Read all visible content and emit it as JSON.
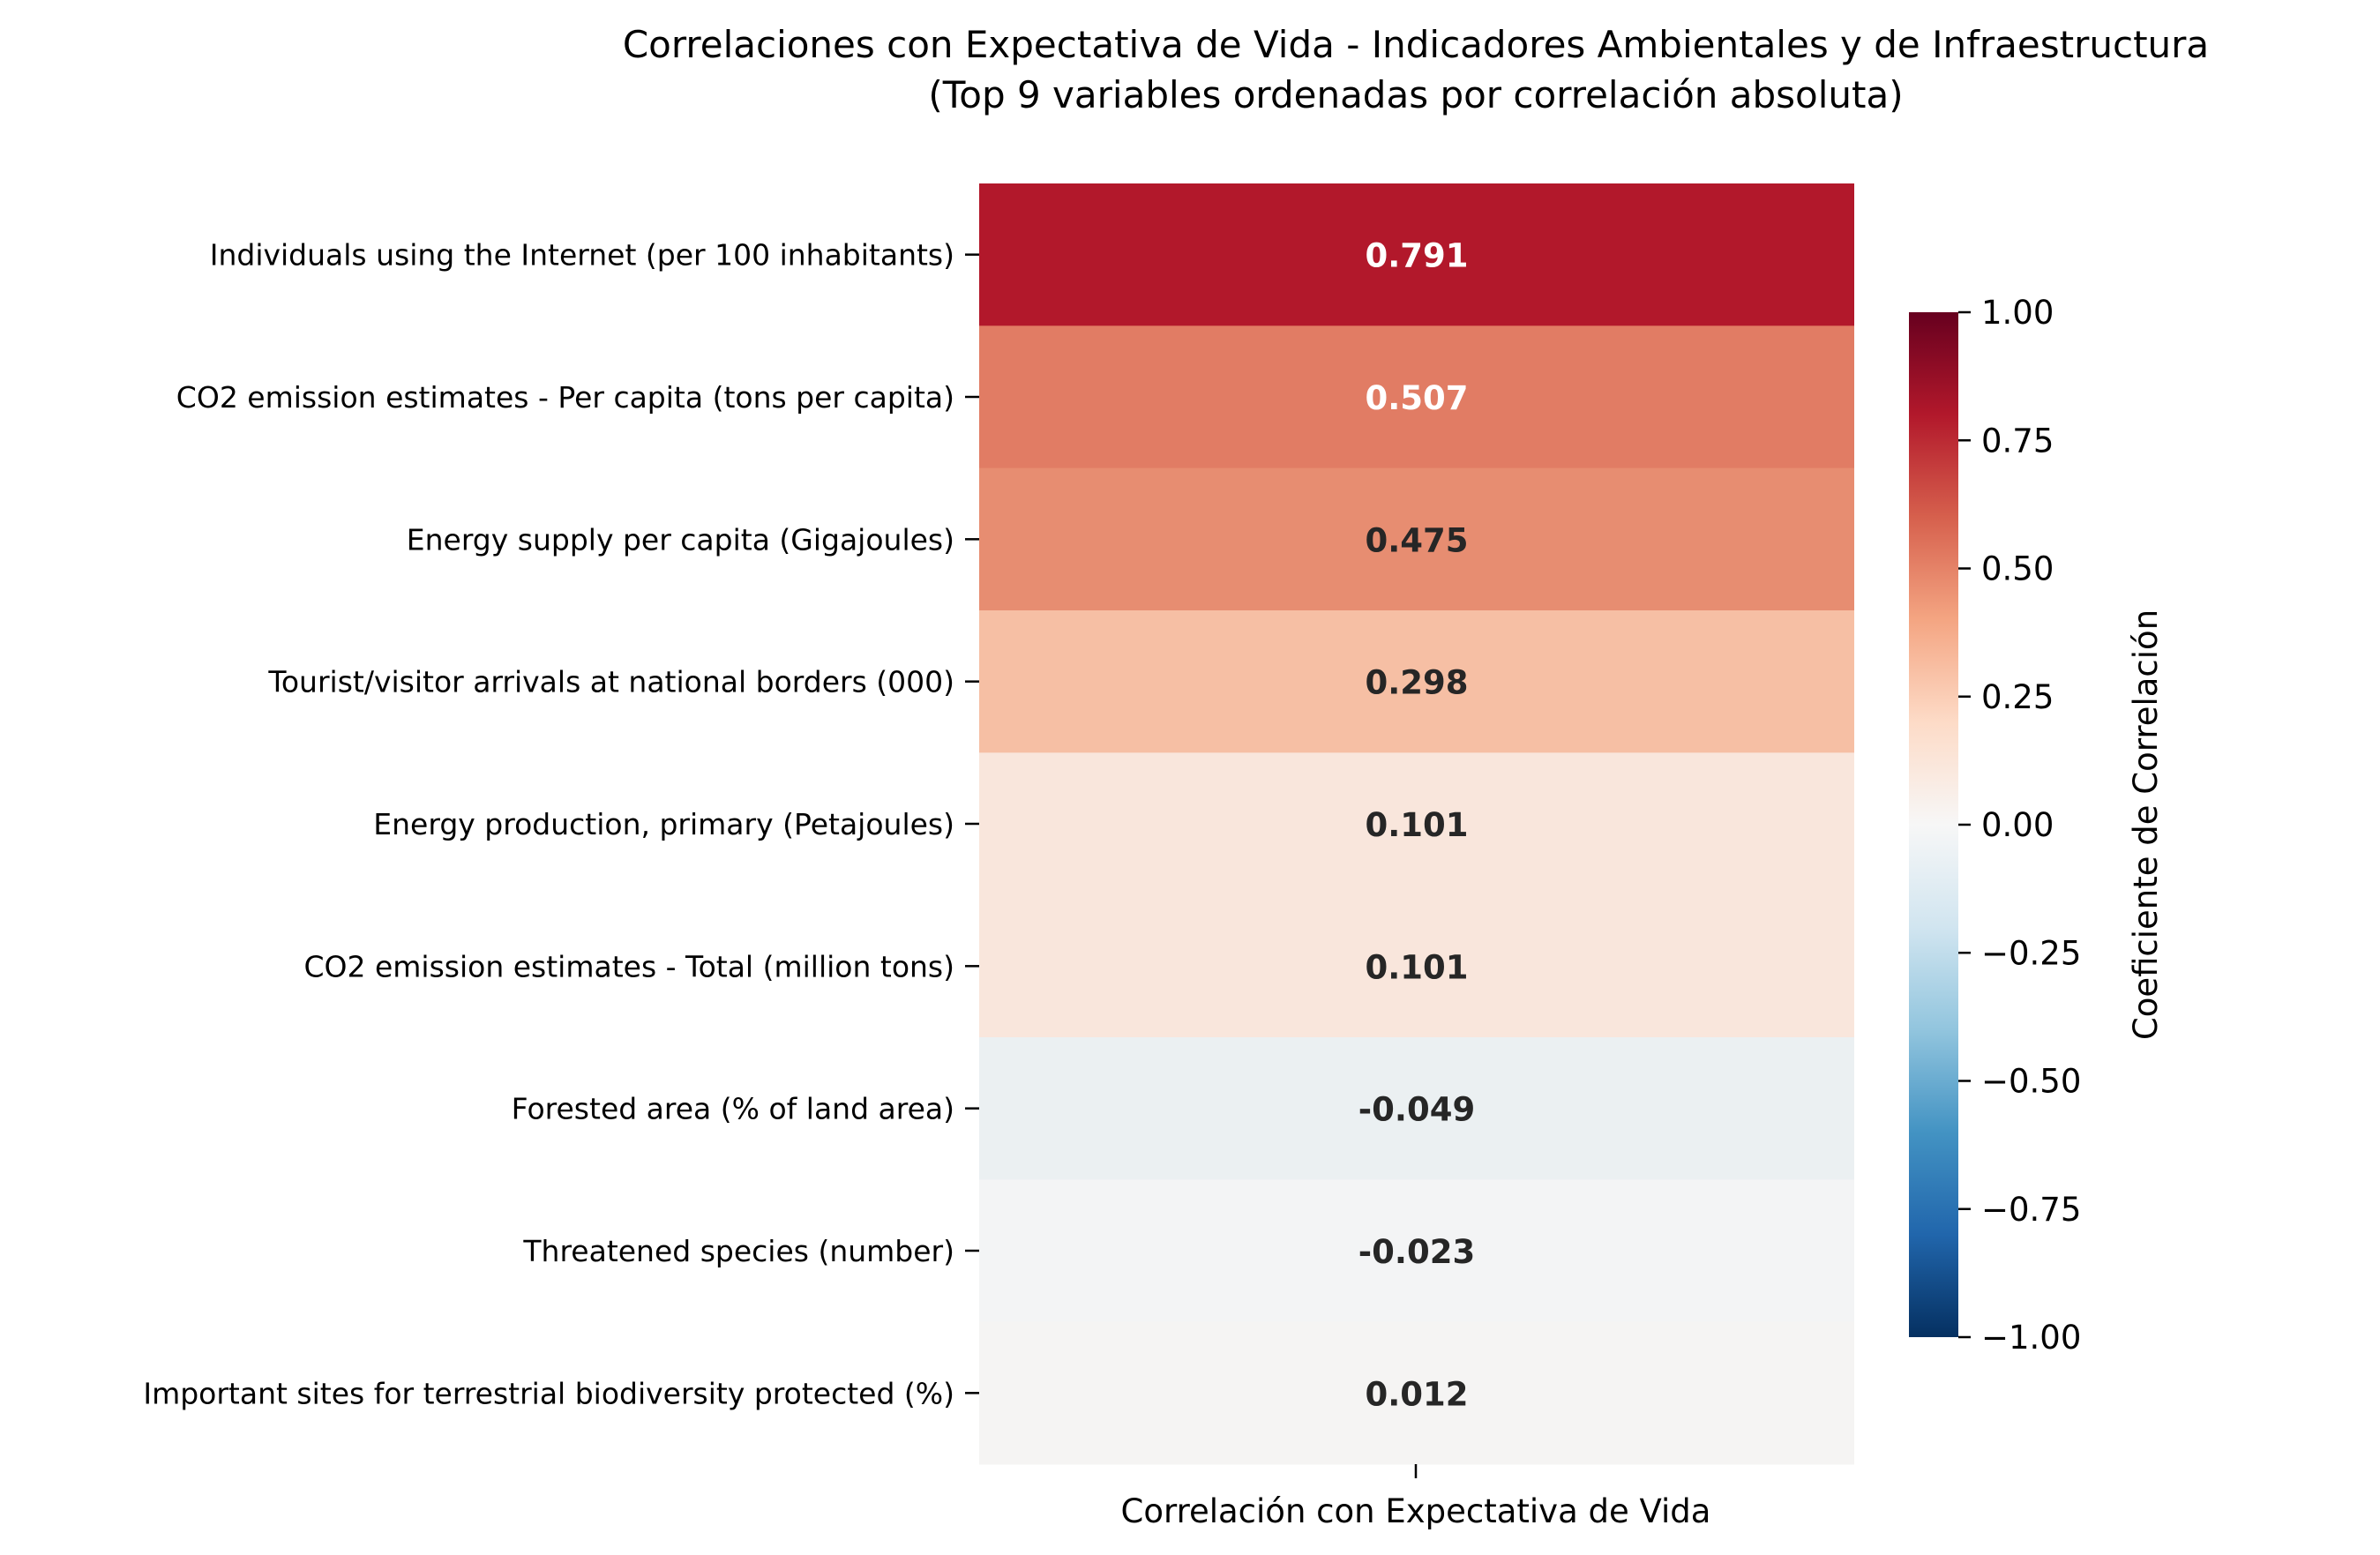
{
  "chart_data": {
    "type": "heatmap",
    "title": "Correlaciones con Expectativa de Vida - Indicadores Ambientales y de Infraestructura",
    "subtitle": "(Top 9 variables ordenadas por correlación absoluta)",
    "xlabel": "Correlación con Expectativa de Vida",
    "columns": [
      "Correlación con Expectativa de Vida"
    ],
    "rows": [
      "Individuals using the Internet (per 100 inhabitants)",
      "CO2 emission estimates - Per capita (tons per capita)",
      "Energy supply per capita (Gigajoules)",
      "Tourist/visitor arrivals at national borders (000)",
      "Energy production, primary (Petajoules)",
      "CO2 emission estimates - Total (million tons)",
      "Forested area (% of land area)",
      "Threatened species (number)",
      "Important sites for terrestrial biodiversity protected (%)"
    ],
    "values": [
      0.791,
      0.507,
      0.475,
      0.298,
      0.101,
      0.101,
      -0.049,
      -0.023,
      0.012
    ],
    "value_labels": [
      "0.791",
      "0.507",
      "0.475",
      "0.298",
      "0.101",
      "0.101",
      "-0.049",
      "-0.023",
      "0.012"
    ],
    "colormap": "RdBu_r",
    "vmin": -1.0,
    "vmax": 1.0,
    "colorbar": {
      "label": "Coeficiente de Correlación",
      "ticks": [
        1.0,
        0.75,
        0.5,
        0.25,
        0.0,
        -0.25,
        -0.5,
        -0.75,
        -1.0
      ],
      "tick_labels": [
        "1.00",
        "0.75",
        "0.50",
        "0.25",
        "0.00",
        "−0.25",
        "−0.50",
        "−0.75",
        "−1.00"
      ]
    },
    "cell_colors": [
      "#b2182b",
      "#e17c64",
      "#e78d71",
      "#f6bfa4",
      "#f9e6dc",
      "#f9e6dc",
      "#ebf0f2",
      "#f3f4f5",
      "#f5f4f3"
    ]
  }
}
